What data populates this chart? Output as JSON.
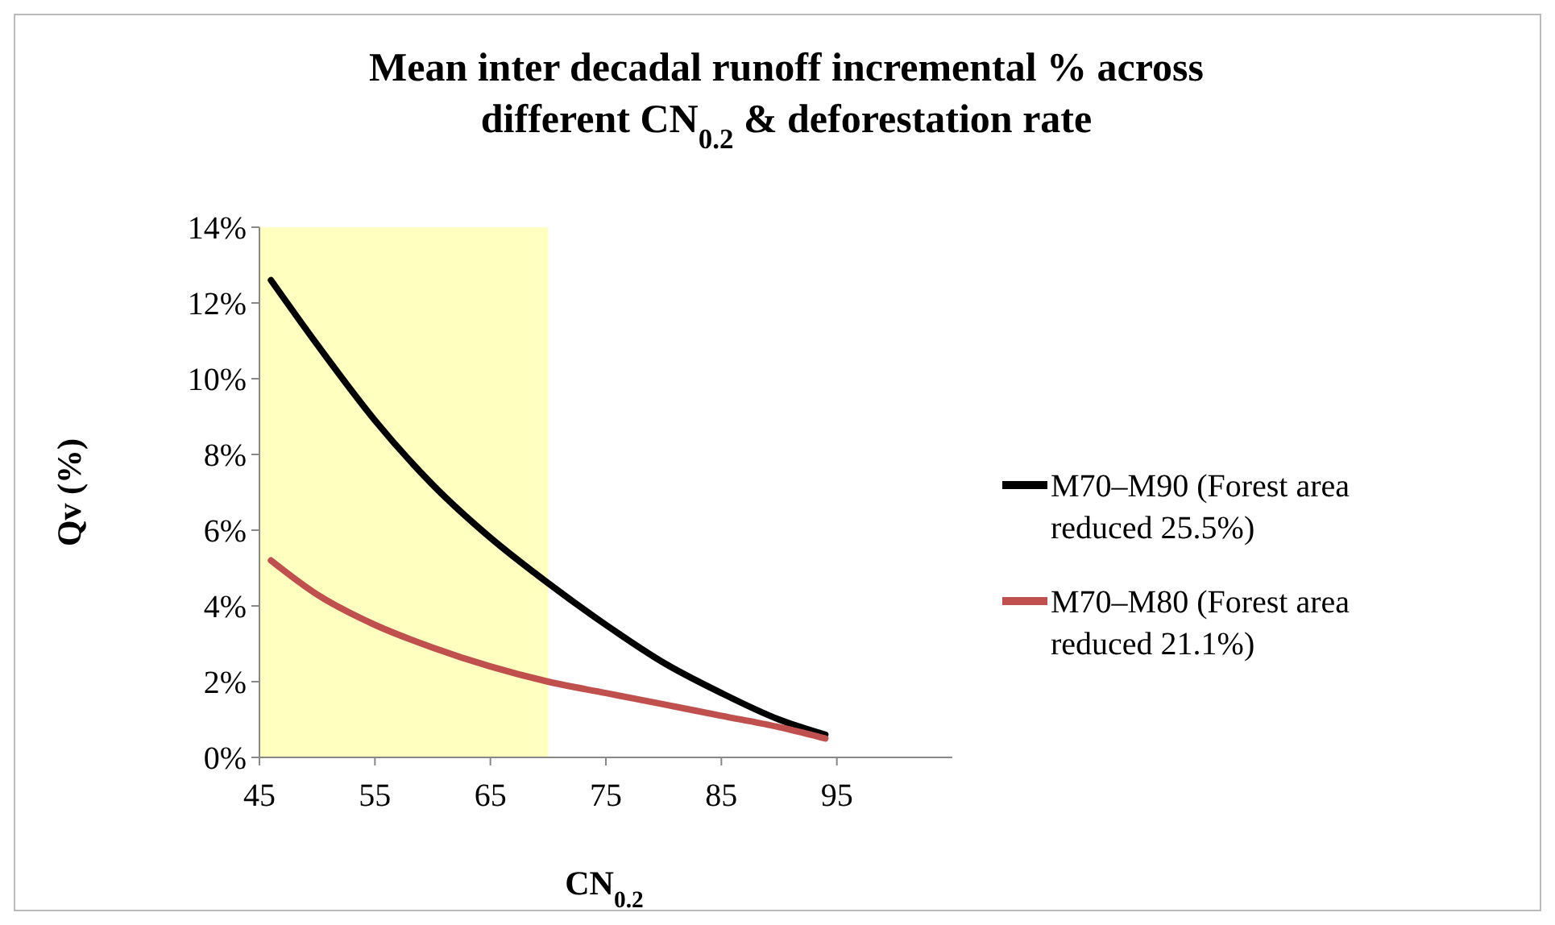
{
  "chart_data": {
    "type": "line",
    "title": "Mean inter decadal runoff incremental % across\ndifferent CN$_{0.2}$ & deforestation rate",
    "xlabel": "CN$_{0.2}$",
    "ylabel": "Qv (%)",
    "xlim": [
      45,
      105
    ],
    "xticks": [
      45,
      55,
      65,
      75,
      85,
      95
    ],
    "ylim": [
      0,
      14
    ],
    "yticks": [
      {
        "value": 0,
        "label": "0%"
      },
      {
        "value": 2,
        "label": "2%"
      },
      {
        "value": 4,
        "label": "4%"
      },
      {
        "value": 6,
        "label": "6%"
      },
      {
        "value": 8,
        "label": "8%"
      },
      {
        "value": 10,
        "label": "10%"
      },
      {
        "value": 12,
        "label": "12%"
      },
      {
        "value": 14,
        "label": "14%"
      }
    ],
    "x": [
      46,
      50,
      55,
      60,
      65,
      70,
      75,
      80,
      85,
      90,
      94
    ],
    "series": [
      {
        "name": "M70–M90 (Forest area reduced 25.5%)",
        "color": "#000000",
        "values": [
          12.6,
          10.9,
          8.9,
          7.2,
          5.8,
          4.6,
          3.5,
          2.5,
          1.7,
          1.0,
          0.6
        ]
      },
      {
        "name": "M70–M80 (Forest area reduced 21.1%)",
        "color": "#c0504d",
        "values": [
          5.2,
          4.3,
          3.5,
          2.9,
          2.4,
          2.0,
          1.7,
          1.4,
          1.1,
          0.8,
          0.5
        ]
      }
    ],
    "bands": [
      {
        "axis": "x",
        "from": 45,
        "to": 70,
        "color": "#ffffc0"
      }
    ],
    "grid": false,
    "legend": "right",
    "marker": "none",
    "line_style": "solid"
  }
}
